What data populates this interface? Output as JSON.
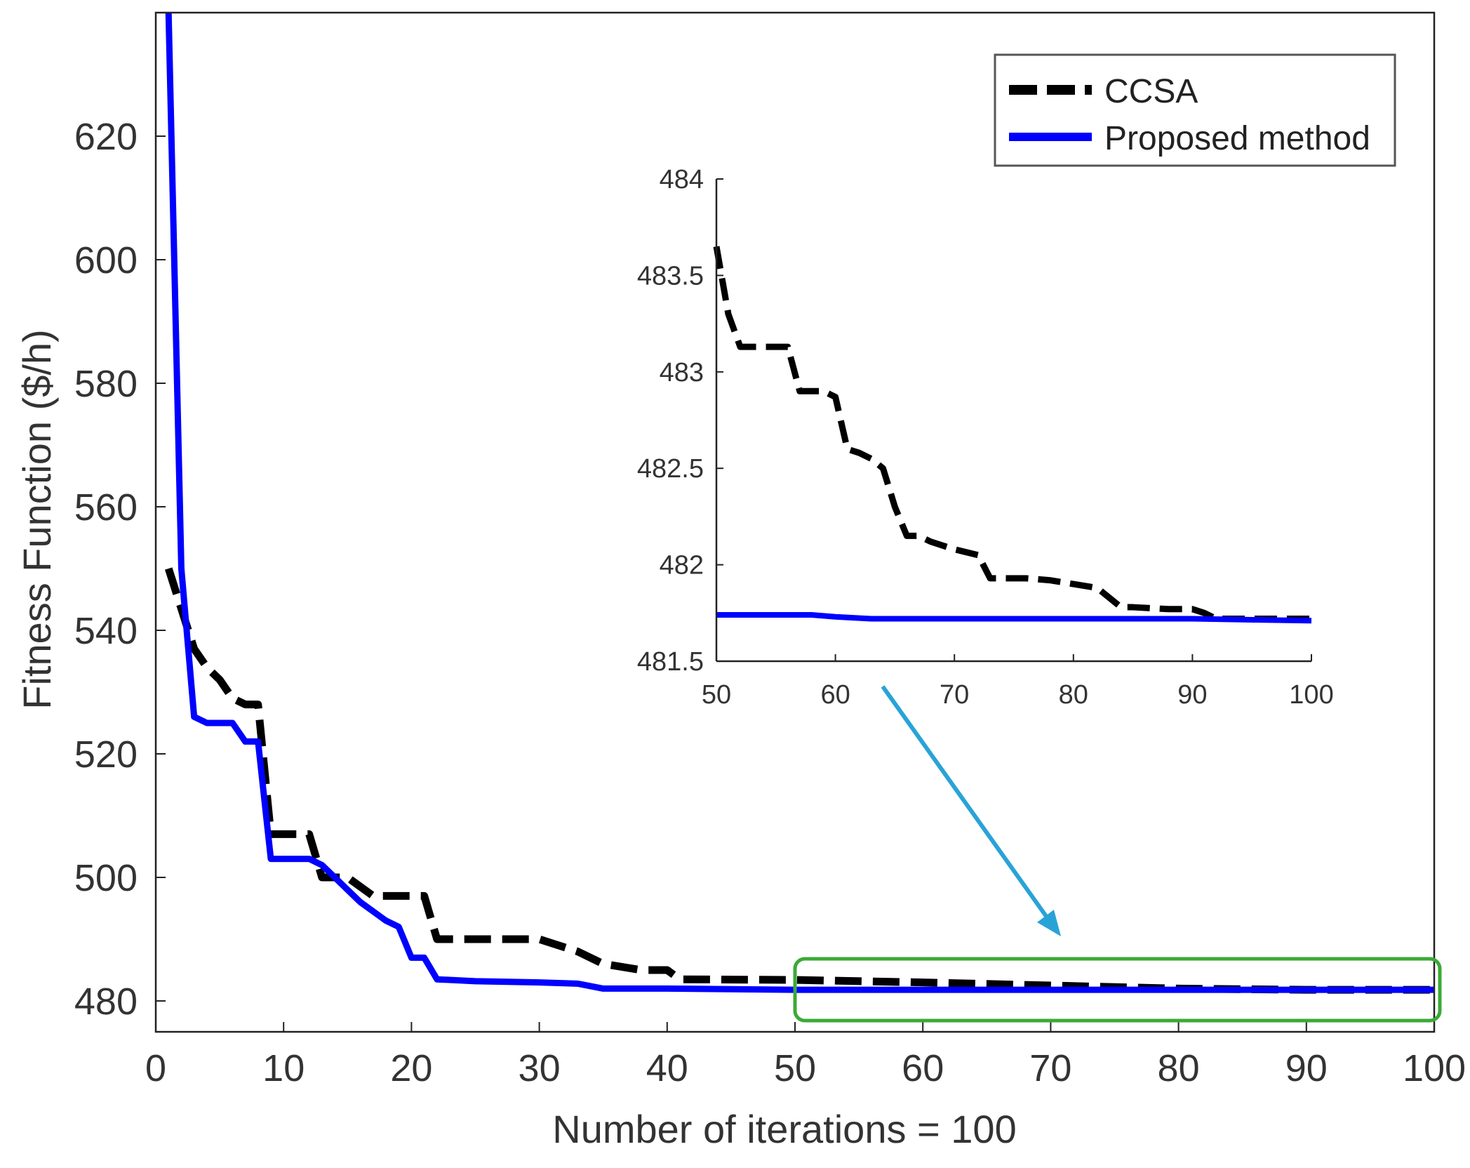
{
  "chart_data": [
    {
      "type": "line",
      "title": "",
      "xlabel": "Number of iterations = 100",
      "ylabel": "Fitness Function ($/h)",
      "xlim": [
        0,
        100
      ],
      "ylim": [
        475,
        640
      ],
      "xticks": [
        "0",
        "10",
        "20",
        "30",
        "40",
        "50",
        "60",
        "70",
        "80",
        "90",
        "100"
      ],
      "yticks": [
        "480",
        "500",
        "520",
        "540",
        "560",
        "580",
        "600",
        "620"
      ],
      "xtick_values": [
        0,
        10,
        20,
        30,
        40,
        50,
        60,
        70,
        80,
        90,
        100
      ],
      "ytick_values": [
        480,
        500,
        520,
        540,
        560,
        580,
        600,
        620
      ],
      "legend": {
        "position": "top-right",
        "entries": [
          "CCSA",
          "Proposed method"
        ]
      },
      "series": [
        {
          "name": "CCSA",
          "color": "#000000",
          "style": "dashed",
          "x": [
            1,
            3,
            4,
            5,
            6,
            7,
            8,
            9,
            10,
            11,
            12,
            13,
            15,
            17,
            19,
            21,
            22,
            25,
            30,
            33,
            35,
            38,
            40,
            41,
            50,
            60,
            70,
            80,
            90,
            100
          ],
          "y": [
            550,
            537,
            534,
            532,
            529,
            528,
            528,
            507,
            507,
            507,
            507,
            500,
            500,
            497,
            497,
            497,
            490,
            490,
            490,
            488,
            486,
            485,
            485,
            483.5,
            483.4,
            483,
            482.5,
            482,
            481.8,
            481.8
          ]
        },
        {
          "name": "Proposed method",
          "color": "#0000ff",
          "style": "solid",
          "x": [
            1,
            2,
            3,
            4,
            5,
            6,
            7,
            8,
            9,
            10,
            11,
            12,
            13,
            14,
            15,
            16,
            17,
            18,
            19,
            20,
            21,
            22,
            25,
            30,
            33,
            35,
            40,
            50,
            100
          ],
          "y": [
            640,
            550,
            526,
            525,
            525,
            525,
            522,
            522,
            503,
            503,
            503,
            503,
            502,
            500,
            498,
            496,
            494.5,
            493,
            492,
            487,
            487,
            483.5,
            483.2,
            483,
            482.8,
            482,
            482,
            481.8,
            481.8
          ]
        }
      ]
    },
    {
      "type": "line",
      "title": "",
      "xlabel": "",
      "ylabel": "",
      "xlim": [
        50,
        100
      ],
      "ylim": [
        481.5,
        484
      ],
      "xticks": [
        "50",
        "60",
        "70",
        "80",
        "90",
        "100"
      ],
      "yticks": [
        "481.5",
        "482",
        "482.5",
        "483",
        "483.5",
        "484"
      ],
      "xtick_values": [
        50,
        60,
        70,
        80,
        90,
        100
      ],
      "ytick_values": [
        481.5,
        482,
        482.5,
        483,
        483.5,
        484
      ],
      "series": [
        {
          "name": "CCSA",
          "color": "#000000",
          "style": "dashed",
          "x": [
            50,
            51,
            52,
            56,
            57,
            59,
            60,
            61,
            62,
            63,
            64,
            65,
            66,
            67,
            68,
            70,
            72,
            73,
            74,
            76,
            78,
            80,
            82,
            84,
            85,
            88,
            90,
            91,
            92,
            94,
            100
          ],
          "y": [
            483.65,
            483.3,
            483.13,
            483.13,
            482.9,
            482.9,
            482.87,
            482.6,
            482.58,
            482.55,
            482.5,
            482.3,
            482.15,
            482.15,
            482.12,
            482.08,
            482.05,
            481.93,
            481.93,
            481.93,
            481.92,
            481.9,
            481.88,
            481.78,
            481.78,
            481.77,
            481.77,
            481.75,
            481.72,
            481.72,
            481.72
          ]
        },
        {
          "name": "Proposed method",
          "color": "#0000ff",
          "style": "solid",
          "x": [
            50,
            58,
            60,
            63,
            65,
            70,
            80,
            90,
            100
          ],
          "y": [
            481.74,
            481.74,
            481.73,
            481.72,
            481.72,
            481.72,
            481.72,
            481.72,
            481.71
          ]
        }
      ]
    }
  ],
  "highlight": {
    "label": "zoom-region",
    "x_range": [
      50,
      100
    ],
    "color": "#3aaa35"
  },
  "arrow_color": "#29a3d6"
}
